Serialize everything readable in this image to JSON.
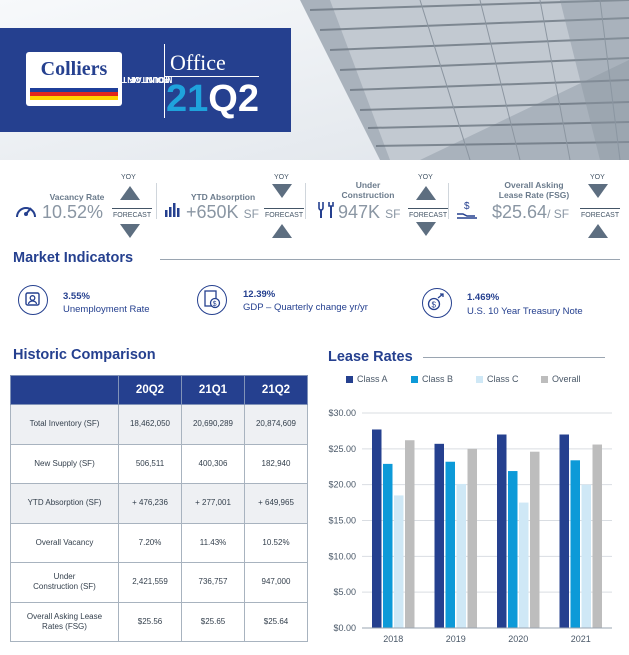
{
  "header": {
    "brand": "Colliers",
    "market": [
      "POINT OF THE",
      "MOUNTAIN"
    ],
    "property_type": "Office",
    "quarter_a": "21",
    "quarter_b": "Q2"
  },
  "kpis": [
    {
      "label": [
        "Vacancy Rate"
      ],
      "value": "10.52%",
      "unit": "",
      "icon": "speedometer-icon",
      "trend_top": "up",
      "trend_bottom": "down"
    },
    {
      "label": [
        "YTD Absorption"
      ],
      "value": "+650K",
      "unit": "SF",
      "icon": "bar-chart-icon",
      "trend_top": "down",
      "trend_bottom": "up"
    },
    {
      "label": [
        "Under",
        "Construction"
      ],
      "value": "947K",
      "unit": "SF",
      "icon": "tools-icon",
      "trend_top": "up",
      "trend_bottom": "down"
    },
    {
      "label": [
        "Overall Asking",
        "Lease Rate (FSG)"
      ],
      "value": "$25.64",
      "unit": "/ SF",
      "icon": "hand-money-icon",
      "trend_top": "down",
      "trend_bottom": "up"
    }
  ],
  "trend_labels": {
    "yoy": "YOY",
    "forecast": "FORECAST"
  },
  "market_indicators": {
    "title": "Market Indicators",
    "items": [
      {
        "value": "3.55%",
        "label": "Unemployment Rate",
        "icon": "person-id-icon"
      },
      {
        "value": "12.39%",
        "label": "GDP – Quarterly change yr/yr",
        "icon": "money-document-icon"
      },
      {
        "value": "1.469%",
        "label": "U.S. 10 Year Treasury Note",
        "icon": "dollar-growth-icon"
      }
    ]
  },
  "historic": {
    "title": "Historic Comparison",
    "columns": [
      "",
      "20Q2",
      "21Q1",
      "21Q2"
    ],
    "rows": [
      {
        "label": [
          "Total Inventory (SF)"
        ],
        "values": [
          "18,462,050",
          "20,690,289",
          "20,874,609"
        ]
      },
      {
        "label": [
          "New Supply (SF)"
        ],
        "values": [
          "506,511",
          "400,306",
          "182,940"
        ]
      },
      {
        "label": [
          "YTD Absorption (SF)"
        ],
        "values": [
          "+ 476,236",
          "+ 277,001",
          "+ 649,965"
        ]
      },
      {
        "label": [
          "Overall Vacancy"
        ],
        "values": [
          "7.20%",
          "11.43%",
          "10.52%"
        ]
      },
      {
        "label": [
          "Under",
          "Construction (SF)"
        ],
        "values": [
          "2,421,559",
          "736,757",
          "947,000"
        ]
      },
      {
        "label": [
          "Overall Asking Lease",
          "Rates (FSG)"
        ],
        "values": [
          "$25.56",
          "$25.65",
          "$25.64"
        ]
      }
    ]
  },
  "chart_data": {
    "type": "bar",
    "title": "Lease Rates",
    "categories": [
      "2018",
      "2019",
      "2020",
      "2021"
    ],
    "series": [
      {
        "name": "Class A",
        "color": "#25408f",
        "values": [
          27.7,
          25.7,
          27.0,
          27.0
        ]
      },
      {
        "name": "Class B",
        "color": "#0d9ad8",
        "values": [
          22.9,
          23.2,
          21.9,
          23.4
        ]
      },
      {
        "name": "Class C",
        "color": "#cfe8f6",
        "values": [
          18.5,
          20.1,
          17.5,
          20.0
        ]
      },
      {
        "name": "Overall",
        "color": "#bdbdbd",
        "values": [
          26.2,
          25.0,
          24.6,
          25.6
        ]
      }
    ],
    "ylim": [
      0,
      30
    ],
    "yticks": [
      "$0.00",
      "$5.00",
      "$10.00",
      "$15.00",
      "$20.00",
      "$25.00",
      "$30.00"
    ],
    "grid": true,
    "legend": "top"
  }
}
